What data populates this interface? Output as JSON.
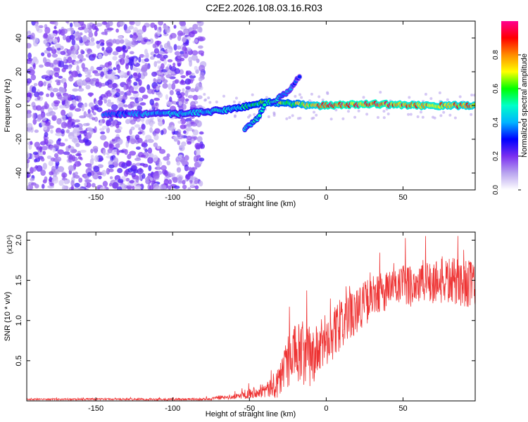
{
  "figure_title": "C2E2.2026.108.03.16.R03",
  "chart_data": [
    {
      "type": "heatmap",
      "xlabel": "Height of straight line (km)",
      "ylabel": "Frequency (Hz)",
      "xlim": [
        -195,
        97
      ],
      "ylim": [
        -50,
        50
      ],
      "xticks": [
        -150,
        -100,
        -50,
        0,
        50
      ],
      "yticks": [
        -40,
        -20,
        0,
        20,
        40
      ],
      "grid": false,
      "colorbar": {
        "label": "Normalized spectral amplitude",
        "range": [
          0.0,
          1.0
        ],
        "ticks": [
          "0.0",
          "0.2",
          "0.4",
          "0.6",
          "0.8"
        ],
        "colormap": [
          "#ffffff",
          "#b9a4ef",
          "#7a2ff0",
          "#0000ff",
          "#00b4ff",
          "#00ffc8",
          "#00ff00",
          "#ffff00",
          "#ff8c00",
          "#ff0000",
          "#ff0090"
        ]
      },
      "features": {
        "noise_region_x": [
          -195,
          -80
        ],
        "noise_level": 0.25,
        "main_trace": [
          {
            "x": -145,
            "f": -5,
            "amp": 0.35
          },
          {
            "x": -100,
            "f": -5,
            "amp": 0.45
          },
          {
            "x": -80,
            "f": -4,
            "amp": 0.45
          },
          {
            "x": -60,
            "f": -2,
            "amp": 0.5
          },
          {
            "x": -40,
            "f": 2,
            "amp": 0.6
          },
          {
            "x": -20,
            "f": 1,
            "amp": 0.65
          },
          {
            "x": -10,
            "f": 0,
            "amp": 0.75
          },
          {
            "x": 0,
            "f": 0,
            "amp": 0.9
          },
          {
            "x": 30,
            "f": 1,
            "amp": 0.9
          },
          {
            "x": 60,
            "f": 0,
            "amp": 0.85
          },
          {
            "x": 97,
            "f": 0,
            "amp": 0.8
          }
        ],
        "upward_branch": [
          {
            "x": -35,
            "f": 2,
            "amp": 0.5
          },
          {
            "x": -25,
            "f": 8,
            "amp": 0.4
          },
          {
            "x": -17,
            "f": 18,
            "amp": 0.3
          }
        ],
        "downward_branch": [
          {
            "x": -40,
            "f": 0,
            "amp": 0.55
          },
          {
            "x": -45,
            "f": -8,
            "amp": 0.5
          },
          {
            "x": -53,
            "f": -14,
            "amp": 0.45
          }
        ]
      }
    },
    {
      "type": "line",
      "xlabel": "Height of straight line (km)",
      "ylabel": "SNR (10 * v/v)",
      "scale_label": "(x10⁴)",
      "xlim": [
        -195,
        97
      ],
      "ylim": [
        0.0,
        2.1
      ],
      "xticks": [
        -150,
        -100,
        -50,
        0,
        50
      ],
      "yticks": [
        0.5,
        1.0,
        1.5,
        2.0
      ],
      "ytick_labels": [
        "0.5",
        "1.0",
        "1.5",
        "2.0"
      ],
      "grid": false,
      "series_color": "#ee3333",
      "envelope": [
        {
          "x": -195,
          "mean": 0.02,
          "spread": 0.01
        },
        {
          "x": -80,
          "mean": 0.02,
          "spread": 0.015
        },
        {
          "x": -60,
          "mean": 0.05,
          "spread": 0.03
        },
        {
          "x": -45,
          "mean": 0.12,
          "spread": 0.08
        },
        {
          "x": -35,
          "mean": 0.15,
          "spread": 0.12
        },
        {
          "x": -28,
          "mean": 0.35,
          "spread": 0.3
        },
        {
          "x": -22,
          "mean": 0.6,
          "spread": 0.35
        },
        {
          "x": -15,
          "mean": 0.55,
          "spread": 0.45
        },
        {
          "x": -8,
          "mean": 0.55,
          "spread": 0.35
        },
        {
          "x": 0,
          "mean": 0.75,
          "spread": 0.35
        },
        {
          "x": 10,
          "mean": 0.95,
          "spread": 0.3
        },
        {
          "x": 20,
          "mean": 1.15,
          "spread": 0.3
        },
        {
          "x": 35,
          "mean": 1.35,
          "spread": 0.25
        },
        {
          "x": 55,
          "mean": 1.45,
          "spread": 0.28
        },
        {
          "x": 75,
          "mean": 1.5,
          "spread": 0.3
        },
        {
          "x": 97,
          "mean": 1.45,
          "spread": 0.3
        }
      ]
    }
  ]
}
